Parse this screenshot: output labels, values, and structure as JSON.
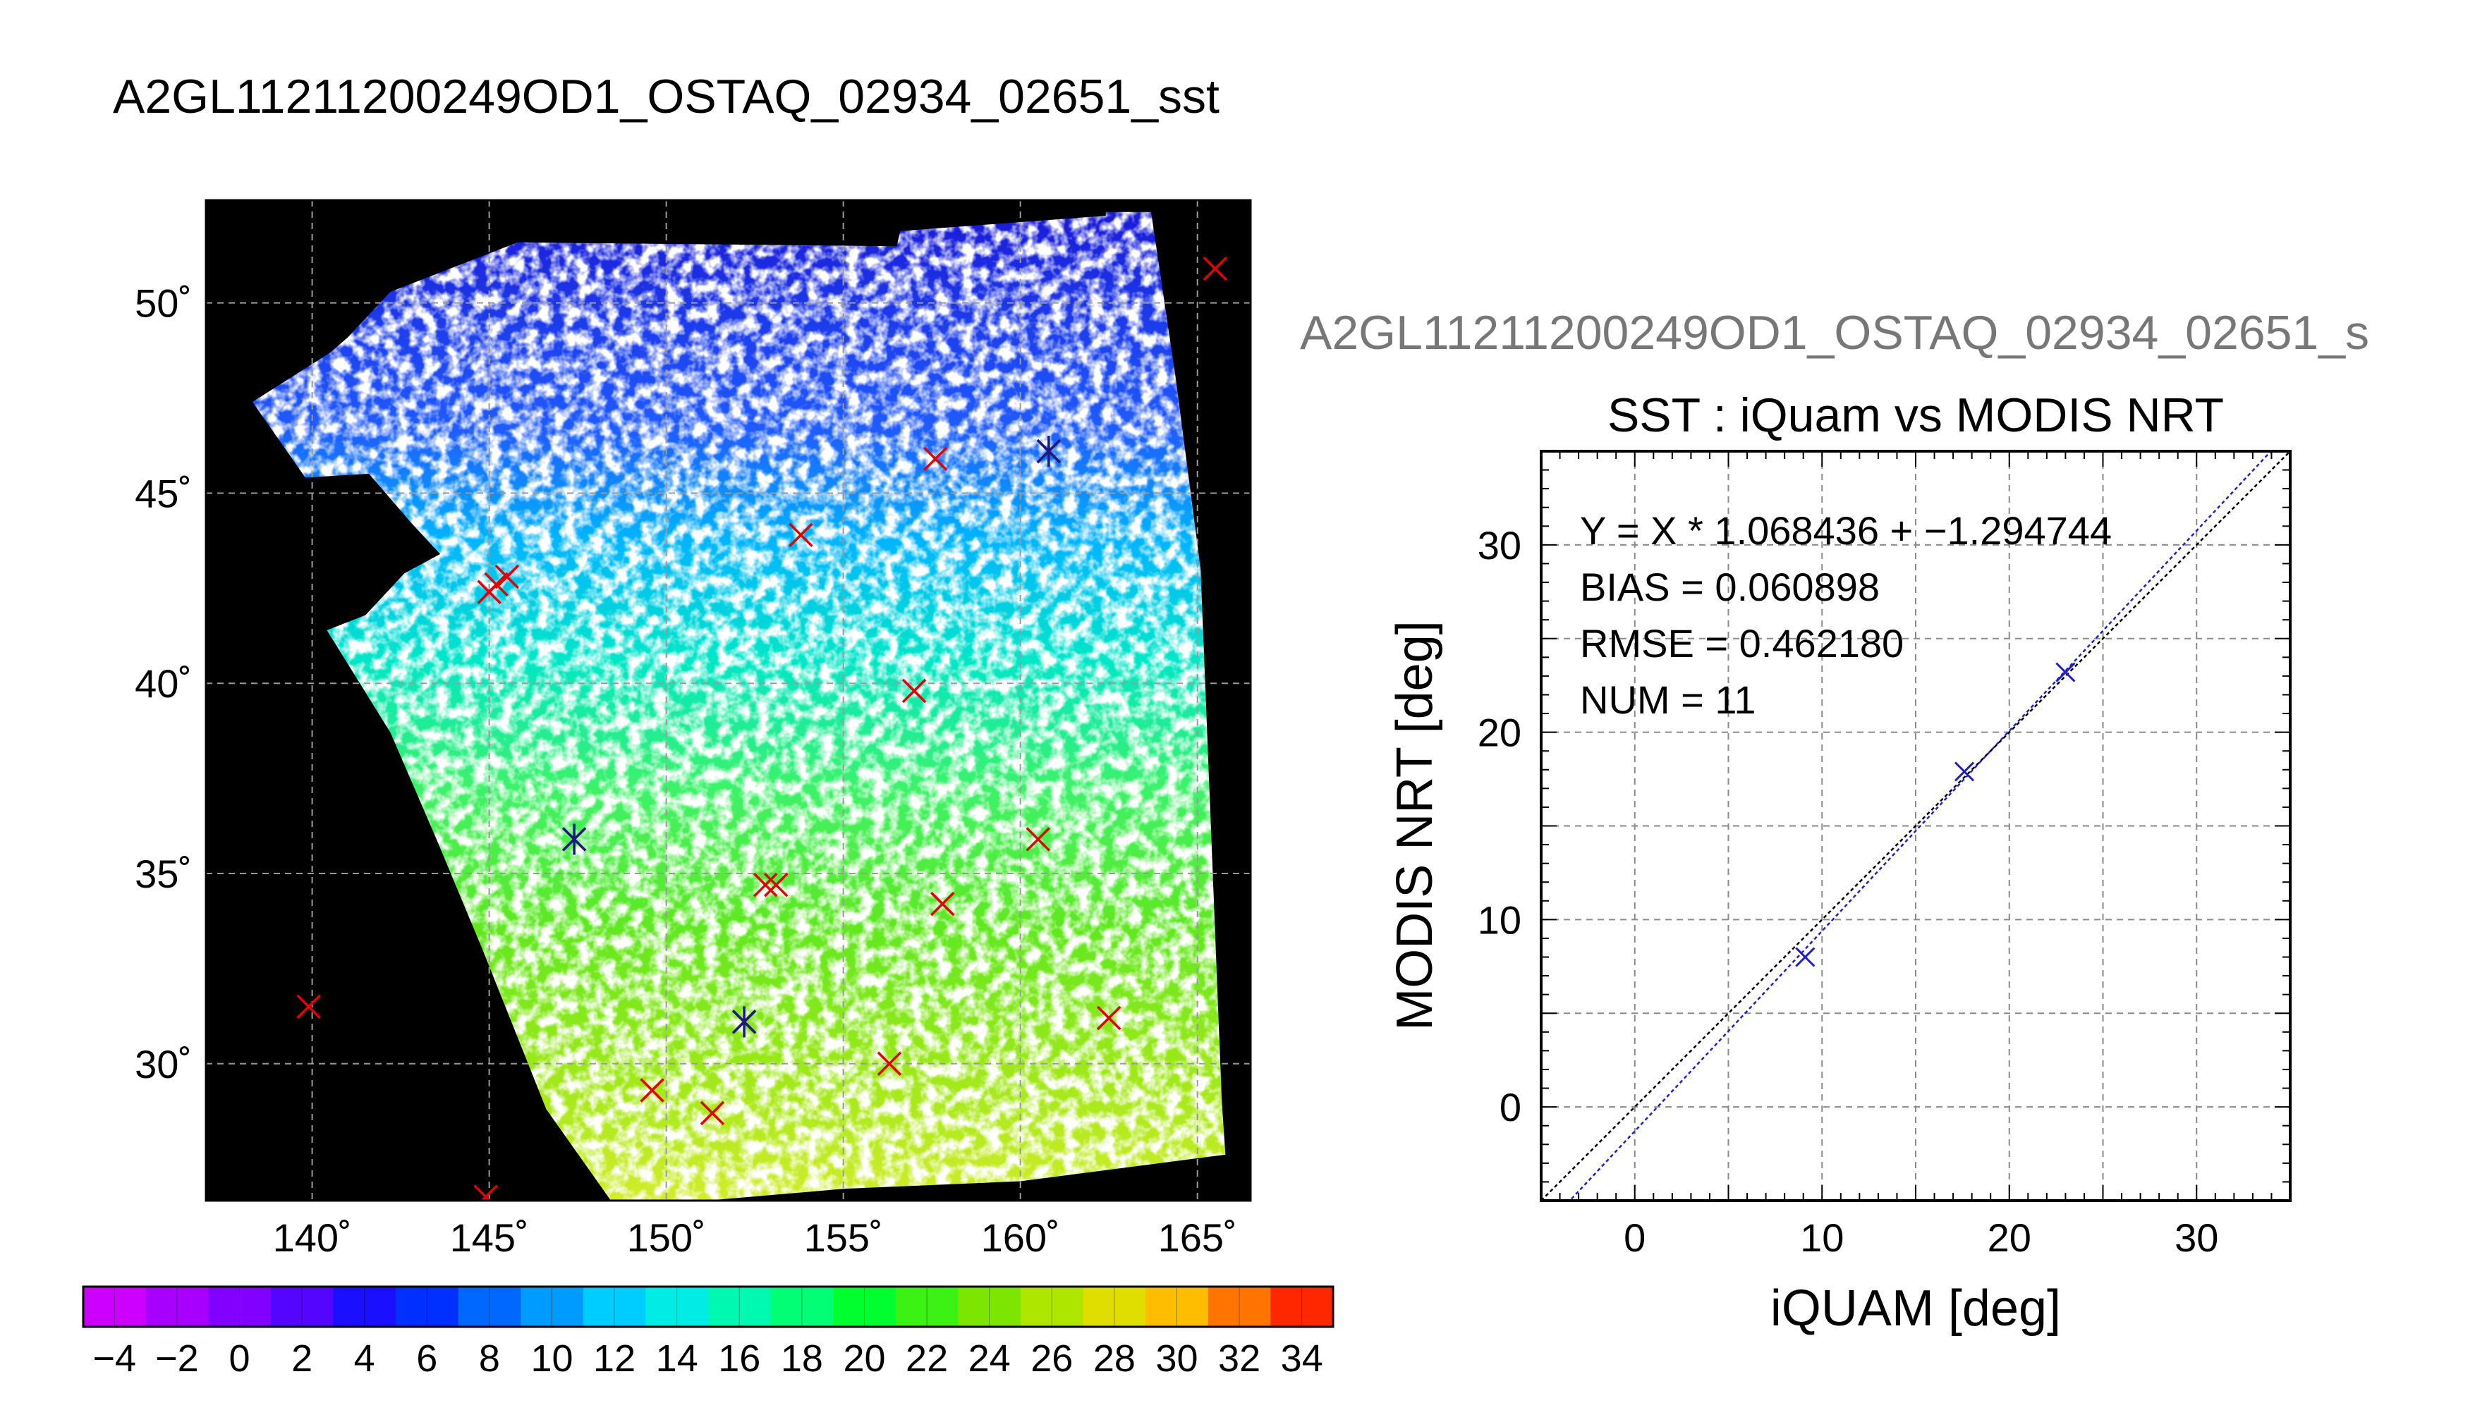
{
  "figure_title": "A2GL11211200249OD1_OSTAQ_02934_02651_sst",
  "chart_data": [
    {
      "type": "map",
      "title": "",
      "xlabel": "",
      "ylabel": "",
      "xlim": [
        137,
        166.5
      ],
      "ylim": [
        26.4,
        52.7
      ],
      "x_ticks": [
        140,
        145,
        150,
        155,
        160,
        165
      ],
      "y_ticks": [
        30,
        35,
        40,
        45,
        50
      ],
      "x_tick_labels": [
        "140˚",
        "145˚",
        "150˚",
        "155˚",
        "160˚",
        "165˚"
      ],
      "y_tick_labels": [
        "30˚",
        "35˚",
        "40˚",
        "45˚",
        "50˚"
      ],
      "grid": true,
      "swath_polygon": [
        [
          138.3,
          47.4
        ],
        [
          140.5,
          48.7
        ],
        [
          141.0,
          49.1
        ],
        [
          142.2,
          50.3
        ],
        [
          145.8,
          51.6
        ],
        [
          156.5,
          51.5
        ],
        [
          156.6,
          51.9
        ],
        [
          162.4,
          52.3
        ],
        [
          162.4,
          52.4
        ],
        [
          163.7,
          52.4
        ],
        [
          164.4,
          48.0
        ],
        [
          165.1,
          43.0
        ],
        [
          165.4,
          36.0
        ],
        [
          165.7,
          29.0
        ],
        [
          165.8,
          27.6
        ],
        [
          160.0,
          26.9
        ],
        [
          155.0,
          26.7
        ],
        [
          150.0,
          26.3
        ],
        [
          148.5,
          26.3
        ],
        [
          146.6,
          28.8
        ],
        [
          144.8,
          33.0
        ],
        [
          143.5,
          35.9
        ],
        [
          142.2,
          38.7
        ],
        [
          140.4,
          41.4
        ],
        [
          141.5,
          41.8
        ],
        [
          142.6,
          42.9
        ],
        [
          143.6,
          43.4
        ],
        [
          142.8,
          44.2
        ],
        [
          141.6,
          45.5
        ],
        [
          139.8,
          45.4
        ]
      ],
      "markers": [
        {
          "lon": 165.5,
          "lat": 50.9,
          "sym": "x",
          "color": "#e00000"
        },
        {
          "lon": 160.8,
          "lat": 46.1,
          "sym": "x",
          "color": "#e00000"
        },
        {
          "lon": 157.6,
          "lat": 45.9,
          "sym": "x",
          "color": "#e00000"
        },
        {
          "lon": 153.8,
          "lat": 43.9,
          "sym": "x",
          "color": "#e00000"
        },
        {
          "lon": 145.0,
          "lat": 42.4,
          "sym": "x",
          "color": "#e00000"
        },
        {
          "lon": 145.2,
          "lat": 42.6,
          "sym": "x",
          "color": "#e00000"
        },
        {
          "lon": 145.5,
          "lat": 42.8,
          "sym": "x",
          "color": "#e00000"
        },
        {
          "lon": 157.0,
          "lat": 39.8,
          "sym": "x",
          "color": "#e00000"
        },
        {
          "lon": 147.4,
          "lat": 35.9,
          "sym": "x",
          "color": "#e00000"
        },
        {
          "lon": 160.5,
          "lat": 35.9,
          "sym": "x",
          "color": "#e00000"
        },
        {
          "lon": 152.8,
          "lat": 34.7,
          "sym": "x",
          "color": "#e00000"
        },
        {
          "lon": 153.1,
          "lat": 34.7,
          "sym": "x",
          "color": "#e00000"
        },
        {
          "lon": 157.8,
          "lat": 34.2,
          "sym": "x",
          "color": "#e00000"
        },
        {
          "lon": 139.9,
          "lat": 31.5,
          "sym": "x",
          "color": "#e00000"
        },
        {
          "lon": 152.2,
          "lat": 31.1,
          "sym": "x",
          "color": "#e00000"
        },
        {
          "lon": 162.5,
          "lat": 31.2,
          "sym": "x",
          "color": "#e00000"
        },
        {
          "lon": 156.3,
          "lat": 30.0,
          "sym": "x",
          "color": "#e00000"
        },
        {
          "lon": 149.6,
          "lat": 29.3,
          "sym": "x",
          "color": "#e00000"
        },
        {
          "lon": 151.3,
          "lat": 28.7,
          "sym": "x",
          "color": "#e00000"
        },
        {
          "lon": 144.9,
          "lat": 26.5,
          "sym": "x",
          "color": "#e00000"
        },
        {
          "lon": 160.8,
          "lat": 46.1,
          "sym": "star",
          "color": "#1a1a80"
        },
        {
          "lon": 147.4,
          "lat": 35.9,
          "sym": "star",
          "color": "#1a1a80"
        },
        {
          "lon": 152.2,
          "lat": 31.1,
          "sym": "star",
          "color": "#1a1a80"
        }
      ]
    },
    {
      "type": "colorbar",
      "vmin": -5,
      "vmax": 35,
      "step": 2,
      "tick_labels": [
        "−4",
        "−2",
        "0",
        "2",
        "4",
        "6",
        "8",
        "10",
        "12",
        "14",
        "16",
        "18",
        "20",
        "22",
        "24",
        "26",
        "28",
        "30",
        "32",
        "34"
      ],
      "tick_values": [
        -4,
        -2,
        0,
        2,
        4,
        6,
        8,
        10,
        12,
        14,
        16,
        18,
        20,
        22,
        24,
        26,
        28,
        30,
        32,
        34
      ]
    },
    {
      "type": "scatter",
      "subtitle": "A2GL11211200249OD1_OSTAQ_02934_02651_s",
      "title": "SST : iQuam vs MODIS NRT",
      "xlabel": "iQUAM [deg]",
      "ylabel": "MODIS NRT [deg]",
      "xlim": [
        -5,
        35
      ],
      "ylim": [
        -5,
        35
      ],
      "x_ticks": [
        0,
        10,
        20,
        30
      ],
      "y_ticks": [
        0,
        10,
        20,
        30
      ],
      "grid": true,
      "stats": [
        "Y = X * 1.068436 + −1.294744",
        "BIAS = 0.060898",
        "RMSE = 0.462180",
        "NUM = 11"
      ],
      "fit": {
        "slope": 1.068436,
        "intercept": -1.294744,
        "color": "#2020c0"
      },
      "one_to_one_color": "#000000",
      "marker_color": "#2020c0",
      "points": [
        {
          "x": 9.1,
          "y": 8.0
        },
        {
          "x": 17.6,
          "y": 17.9
        },
        {
          "x": 23.0,
          "y": 23.2
        }
      ]
    }
  ]
}
